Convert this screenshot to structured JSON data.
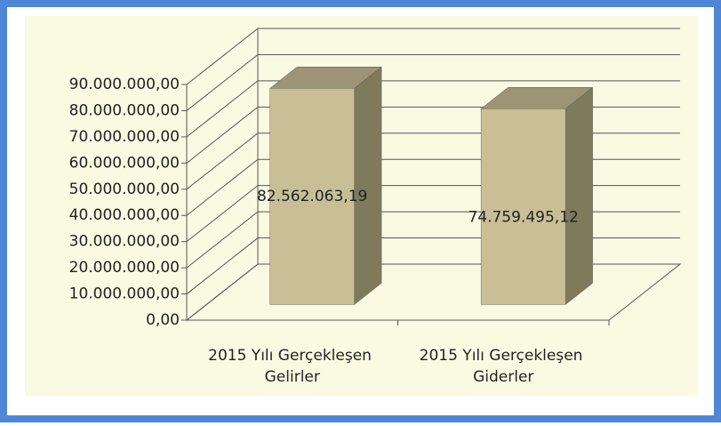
{
  "chart_data": {
    "type": "bar3d",
    "categories": [
      "2015 Yılı Gerçekleşen Gelirler",
      "2015 Yılı Gerçekleşen Giderler"
    ],
    "values": [
      82562063.19,
      74759495.12
    ],
    "value_labels": [
      "82.562.063,19",
      "74.759.495,12"
    ],
    "color": "#c8bf96",
    "ylim": [
      0,
      90000000
    ],
    "yticks": [
      {
        "value": 0,
        "label": "0,00"
      },
      {
        "value": 10000000,
        "label": "10.000.000,00"
      },
      {
        "value": 20000000,
        "label": "20.000.000,00"
      },
      {
        "value": 30000000,
        "label": "30.000.000,00"
      },
      {
        "value": 40000000,
        "label": "40.000.000,00"
      },
      {
        "value": 50000000,
        "label": "50.000.000,00"
      },
      {
        "value": 60000000,
        "label": "60.000.000,00"
      },
      {
        "value": 70000000,
        "label": "70.000.000,00"
      },
      {
        "value": 80000000,
        "label": "80.000.000,00"
      },
      {
        "value": 90000000,
        "label": "90.000.000,00"
      }
    ],
    "grid": true
  }
}
